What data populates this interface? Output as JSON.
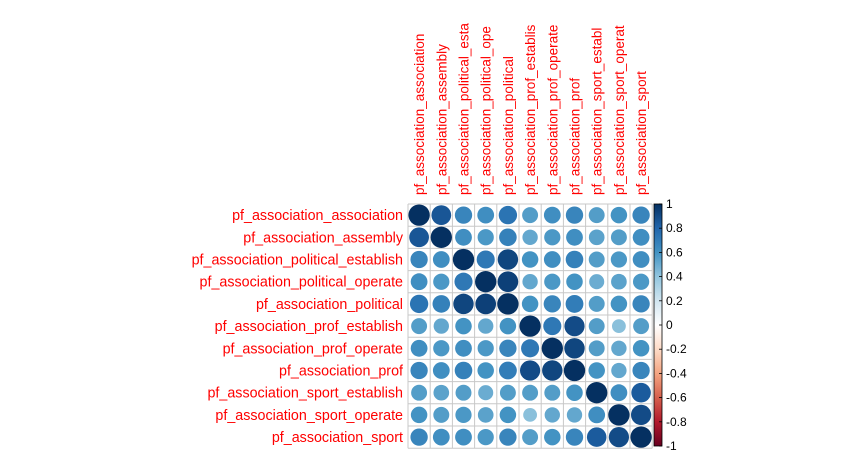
{
  "chart_data": {
    "type": "heatmap",
    "style": "circle correlation plot",
    "row_labels": [
      "pf_association_association",
      "pf_association_assembly",
      "pf_association_political_establish",
      "pf_association_political_operate",
      "pf_association_political",
      "pf_association_prof_establish",
      "pf_association_prof_operate",
      "pf_association_prof",
      "pf_association_sport_establish",
      "pf_association_sport_operate",
      "pf_association_sport"
    ],
    "column_labels": [
      "pf_association_association",
      "pf_association_assembly",
      "pf_association_political_esta",
      "pf_association_political_ope",
      "pf_association_political",
      "pf_association_prof_establis",
      "pf_association_prof_operate",
      "pf_association_prof",
      "pf_association_sport_establ",
      "pf_association_sport_operat",
      "pf_association_sport"
    ],
    "matrix": [
      [
        1.0,
        0.86,
        0.66,
        0.62,
        0.74,
        0.56,
        0.62,
        0.66,
        0.56,
        0.6,
        0.66
      ],
      [
        0.86,
        1.0,
        0.62,
        0.58,
        0.68,
        0.52,
        0.58,
        0.62,
        0.54,
        0.56,
        0.62
      ],
      [
        0.66,
        0.62,
        1.0,
        0.72,
        0.92,
        0.6,
        0.62,
        0.68,
        0.56,
        0.58,
        0.62
      ],
      [
        0.62,
        0.58,
        0.72,
        1.0,
        0.94,
        0.52,
        0.58,
        0.6,
        0.5,
        0.54,
        0.58
      ],
      [
        0.74,
        0.68,
        0.92,
        0.94,
        1.0,
        0.6,
        0.66,
        0.7,
        0.56,
        0.6,
        0.66
      ],
      [
        0.56,
        0.52,
        0.6,
        0.52,
        0.6,
        1.0,
        0.72,
        0.9,
        0.56,
        0.42,
        0.56
      ],
      [
        0.62,
        0.58,
        0.62,
        0.58,
        0.66,
        0.72,
        1.0,
        0.92,
        0.56,
        0.52,
        0.6
      ],
      [
        0.66,
        0.62,
        0.68,
        0.6,
        0.7,
        0.9,
        0.92,
        1.0,
        0.6,
        0.52,
        0.66
      ],
      [
        0.56,
        0.54,
        0.56,
        0.5,
        0.56,
        0.56,
        0.56,
        0.6,
        1.0,
        0.62,
        0.84
      ],
      [
        0.6,
        0.56,
        0.58,
        0.54,
        0.6,
        0.42,
        0.52,
        0.52,
        0.62,
        1.0,
        0.9
      ],
      [
        0.66,
        0.62,
        0.62,
        0.58,
        0.66,
        0.56,
        0.6,
        0.66,
        0.84,
        0.9,
        1.0
      ]
    ],
    "value_range": [
      -1,
      1
    ],
    "colorbar_ticks": [
      "1",
      "0.8",
      "0.6",
      "0.4",
      "0.2",
      "0",
      "-0.2",
      "-0.4",
      "-0.6",
      "-0.8",
      "-1"
    ],
    "colors": {
      "label_text": "#ff0000",
      "grid": "#c8c8c8",
      "tick_text": "#000000",
      "scale": [
        "#67001f",
        "#b2182b",
        "#d6604d",
        "#f4a582",
        "#fddbc7",
        "#ffffff",
        "#d1e5f0",
        "#92c5de",
        "#4393c3",
        "#2166ac",
        "#053061"
      ]
    }
  }
}
